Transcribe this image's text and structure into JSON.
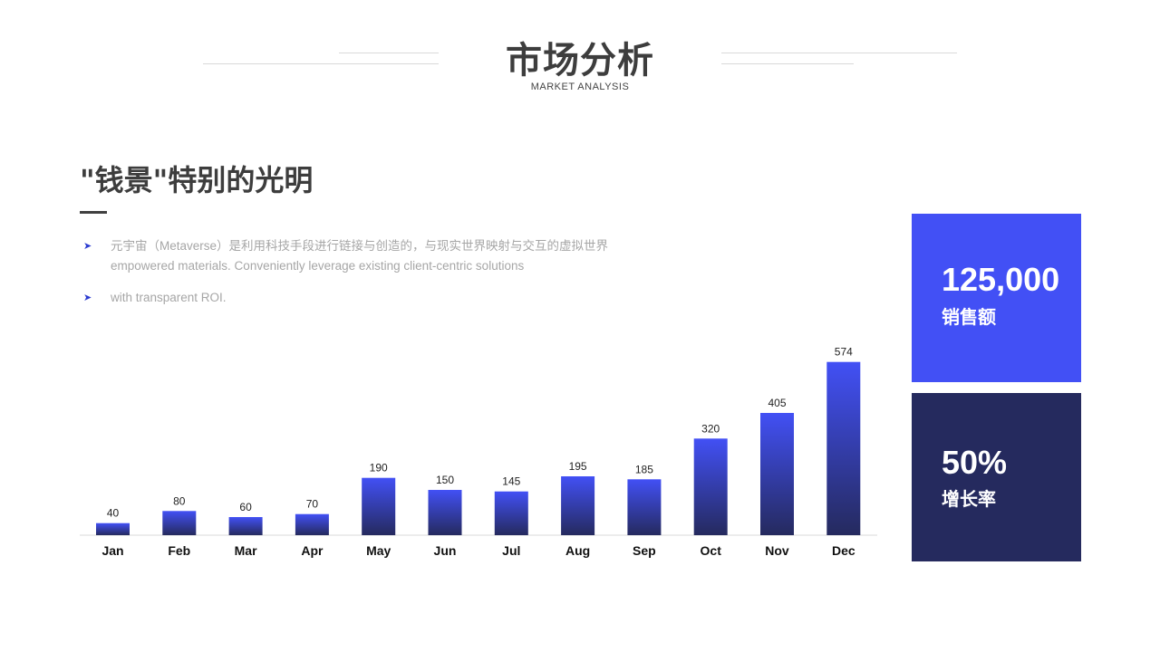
{
  "colors": {
    "accent_blue": "#4250f5",
    "navy": "#252a5e",
    "bar_top": "#4250f5",
    "bar_bottom": "#252a5e"
  },
  "header": {
    "title": "市场分析",
    "subtitle": "MARKET ANALYSIS"
  },
  "section": {
    "heading": "\"钱景\"特别的光明",
    "bullet_icon": "arrow-bullet-icon",
    "bullets": [
      {
        "line1": "元宇宙（Metaverse）是利用科技手段进行链接与创造的，与现实世界映射与交互的虚拟世界",
        "line2": "empowered materials. Conveniently leverage existing client-centric solutions"
      },
      {
        "line1": "with transparent ROI.",
        "line2": ""
      }
    ]
  },
  "chart_data": {
    "type": "bar",
    "categories": [
      "Jan",
      "Feb",
      "Mar",
      "Apr",
      "May",
      "Jun",
      "Jul",
      "Aug",
      "Sep",
      "Oct",
      "Nov",
      "Dec"
    ],
    "values": [
      40,
      80,
      60,
      70,
      190,
      150,
      145,
      195,
      185,
      320,
      405,
      574
    ],
    "title": "",
    "xlabel": "",
    "ylabel": "",
    "ylim": [
      0,
      600
    ],
    "data_labels": true,
    "grid": false,
    "legend": "none"
  },
  "stats": [
    {
      "value": "125,000",
      "label": "销售额",
      "color": "#4250f5"
    },
    {
      "value": "50%",
      "label": "增长率",
      "color": "#252a5e"
    }
  ]
}
